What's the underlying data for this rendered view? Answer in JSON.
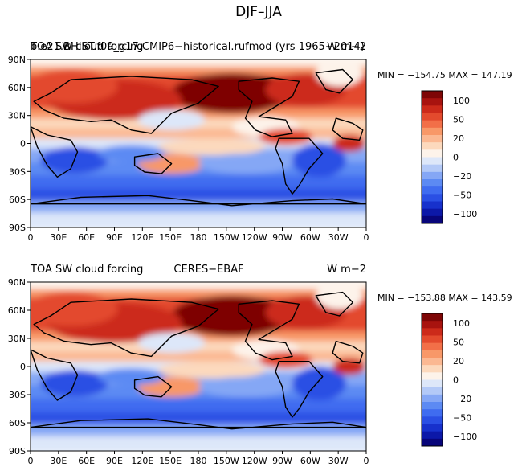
{
  "page_title": "DJF–JJA",
  "colorbar_labels": [
    "100",
    "50",
    "20",
    "0",
    "−20",
    "−50",
    "−100"
  ],
  "colors": {
    "palette": [
      "#08057a",
      "#0c18a8",
      "#1731cc",
      "#2a4fe4",
      "#3f6cf0",
      "#5c8af3",
      "#85a7f5",
      "#b3c9f7",
      "#dde7f9",
      "#fdf3ea",
      "#fcd9bd",
      "#fbb892",
      "#f89868",
      "#f26f48",
      "#e34a2d",
      "#cc2a1a",
      "#a8130f",
      "#7e0606"
    ],
    "coast": "#000000"
  },
  "chart_data": [
    {
      "type": "heatmap",
      "overlay_titles": [
        "b.e21.BHIST.f09_g17.CMIP6−historical.rufmod (yrs 1965−2014)",
        "TOA SW cloud forcing"
      ],
      "units_label": "W m−2",
      "stats_label": "MIN = −154.75   MAX = 147.19",
      "min": -154.75,
      "max": 147.19,
      "x_ticks": [
        "0",
        "30E",
        "60E",
        "90E",
        "120E",
        "150E",
        "180",
        "150W",
        "120W",
        "90W",
        "60W",
        "30W",
        "0"
      ],
      "y_ticks": [
        "90N",
        "60N",
        "30N",
        "0",
        "30S",
        "60S",
        "90S"
      ],
      "xlim": [
        0,
        360
      ],
      "ylim": [
        -90,
        90
      ],
      "colorbar_levels": [
        100,
        50,
        20,
        0,
        -20,
        -50,
        -100
      ]
    },
    {
      "type": "heatmap",
      "left_title": "TOA SW cloud forcing",
      "center_title": "CERES−EBAF",
      "units_label": "W m−2",
      "stats_label": "MIN = −153.88   MAX = 143.59",
      "min": -153.88,
      "max": 143.59,
      "x_ticks": [
        "0",
        "30E",
        "60E",
        "90E",
        "120E",
        "150E",
        "180",
        "150W",
        "120W",
        "90W",
        "60W",
        "30W",
        "0"
      ],
      "y_ticks": [
        "90N",
        "60N",
        "30N",
        "0",
        "30S",
        "60S",
        "90S"
      ],
      "xlim": [
        0,
        360
      ],
      "ylim": [
        -90,
        90
      ],
      "colorbar_levels": [
        100,
        50,
        20,
        0,
        -20,
        -50,
        -100
      ]
    }
  ]
}
